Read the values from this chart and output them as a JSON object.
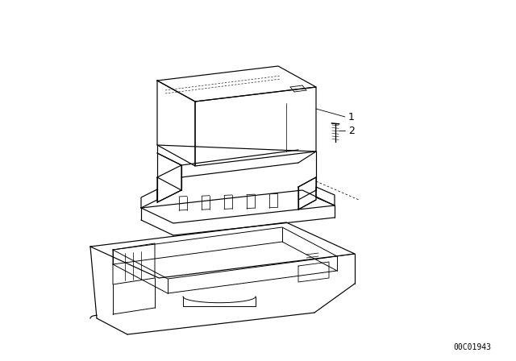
{
  "background_color": "#ffffff",
  "line_color": "#000000",
  "line_width": 0.85,
  "watermark": "00C01943",
  "watermark_fontsize": 7,
  "label_1": "1",
  "label_2": "2",
  "label_fontsize": 9
}
